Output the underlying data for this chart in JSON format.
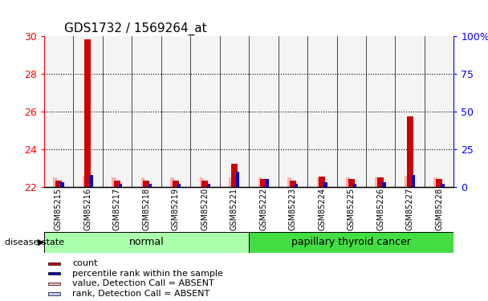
{
  "title": "GDS1732 / 1569264_at",
  "samples": [
    "GSM85215",
    "GSM85216",
    "GSM85217",
    "GSM85218",
    "GSM85219",
    "GSM85220",
    "GSM85221",
    "GSM85222",
    "GSM85223",
    "GSM85224",
    "GSM85225",
    "GSM85226",
    "GSM85227",
    "GSM85228"
  ],
  "red_values": [
    22.3,
    29.85,
    22.3,
    22.3,
    22.3,
    22.3,
    23.2,
    22.4,
    22.3,
    22.55,
    22.4,
    22.5,
    25.75,
    22.4
  ],
  "blue_pct": [
    3,
    8,
    2,
    2,
    2,
    2,
    10,
    5,
    2,
    3,
    2,
    3,
    8,
    2
  ],
  "pink_values": [
    22.48,
    22.58,
    22.48,
    22.48,
    22.48,
    22.48,
    22.48,
    22.48,
    22.48,
    22.48,
    22.48,
    22.48,
    22.58,
    22.48
  ],
  "lightblue_pct": [
    1.5,
    1.5,
    1.5,
    1.5,
    1.5,
    1.5,
    1.5,
    1.5,
    1.5,
    1.5,
    1.5,
    1.5,
    1.5,
    1.5
  ],
  "ylim": [
    22.0,
    30.0
  ],
  "y2lim": [
    0,
    100
  ],
  "yticks": [
    22,
    24,
    26,
    28,
    30
  ],
  "y2ticks": [
    0,
    25,
    50,
    75,
    100
  ],
  "baseline": 22.0,
  "normal_indices": [
    0,
    1,
    2,
    3,
    4,
    5,
    6
  ],
  "cancer_indices": [
    7,
    8,
    9,
    10,
    11,
    12,
    13
  ],
  "normal_label": "normal",
  "cancer_label": "papillary thyroid cancer",
  "disease_state_label": "disease state",
  "normal_color": "#AAFFAA",
  "cancer_color": "#44DD44",
  "bg_gray": "#DDDDDD",
  "background_color": "#ffffff",
  "left_axis_color": "red",
  "right_axis_color": "blue",
  "legend_items": [
    {
      "color": "#CC0000",
      "label": "count"
    },
    {
      "color": "#0000CC",
      "label": "percentile rank within the sample"
    },
    {
      "color": "#FFB6B6",
      "label": "value, Detection Call = ABSENT"
    },
    {
      "color": "#C0C8FF",
      "label": "rank, Detection Call = ABSENT"
    }
  ]
}
